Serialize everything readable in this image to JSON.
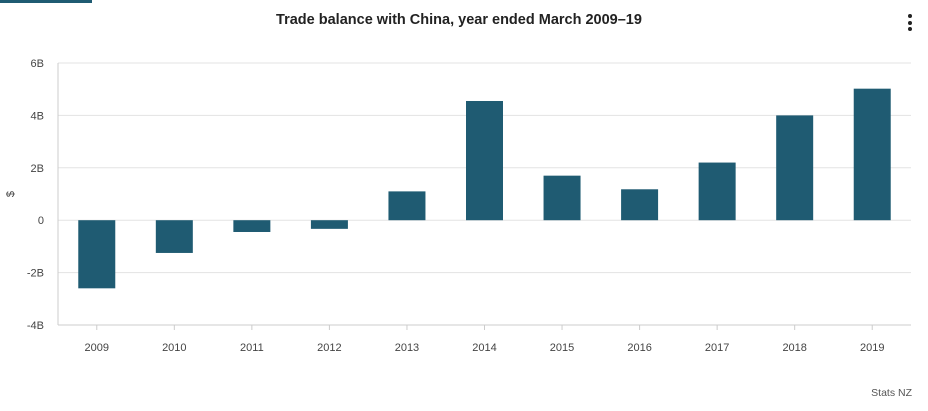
{
  "chart_data": {
    "type": "bar",
    "title": "Trade balance with China, year ended March 2009–19",
    "ylabel": "$",
    "xlabel": "",
    "categories": [
      "2009",
      "2010",
      "2011",
      "2012",
      "2013",
      "2014",
      "2015",
      "2016",
      "2017",
      "2018",
      "2019"
    ],
    "values": [
      -2.6,
      -1.25,
      -0.45,
      -0.33,
      1.1,
      4.55,
      1.7,
      1.18,
      2.2,
      4.0,
      5.02
    ],
    "value_unit": "billion",
    "ylim": [
      -4,
      6
    ],
    "y_ticks": [
      {
        "value": 6,
        "label": "6B"
      },
      {
        "value": 4,
        "label": "4B"
      },
      {
        "value": 2,
        "label": "2B"
      },
      {
        "value": 0,
        "label": "0"
      },
      {
        "value": -2,
        "label": "-2B"
      },
      {
        "value": -4,
        "label": "-4B"
      }
    ],
    "grid": true,
    "legend": "none",
    "bar_color": "#1f5b72"
  },
  "credit": "Stats NZ",
  "menu_icon": "vertical-ellipsis-icon"
}
